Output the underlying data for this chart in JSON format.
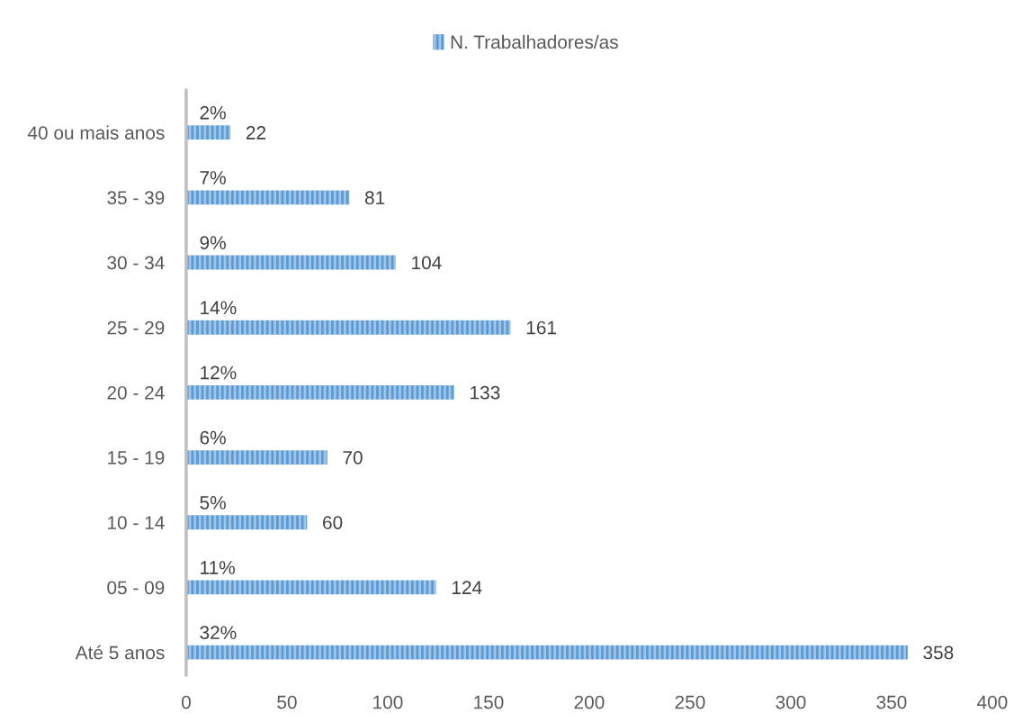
{
  "chart_data": {
    "type": "bar",
    "orientation": "horizontal",
    "categories": [
      "40 ou mais anos",
      "35 - 39",
      "30 - 34",
      "25 - 29",
      "20 - 24",
      "15 - 19",
      "10 - 14",
      "05 - 09",
      "Até 5 anos"
    ],
    "series": [
      {
        "name": "N. Trabalhadores/as",
        "color": "#5b9bd5",
        "values": [
          22,
          81,
          104,
          161,
          133,
          70,
          60,
          124,
          358
        ]
      }
    ],
    "xlim": [
      0,
      400
    ],
    "xticks": [
      0,
      50,
      100,
      150,
      200,
      250,
      300,
      350,
      400
    ],
    "data_labels": true,
    "legend": "top",
    "grid": false,
    "annotations": [
      "2%",
      "7%",
      "9%",
      "14%",
      "12%",
      "6%",
      "5%",
      "11%",
      "32%"
    ]
  }
}
